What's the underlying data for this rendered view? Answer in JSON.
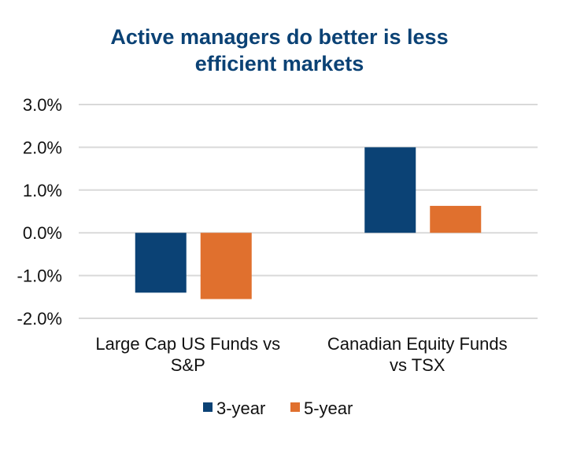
{
  "chart_data": {
    "type": "bar",
    "title": "Active managers do better is less efficient markets",
    "title_lines": [
      "Active managers do better is less",
      "efficient markets"
    ],
    "categories": [
      "Large Cap US Funds vs S&P",
      "Canadian Equity Funds vs TSX"
    ],
    "category_lines": [
      [
        "Large Cap US Funds vs",
        "S&P"
      ],
      [
        "Canadian Equity Funds",
        "vs TSX"
      ]
    ],
    "series": [
      {
        "name": "3-year",
        "color": "#0b4275",
        "values": [
          -1.4,
          2.0
        ]
      },
      {
        "name": "5-year",
        "color": "#e0702e",
        "values": [
          -1.55,
          0.63
        ]
      }
    ],
    "xlabel": "",
    "ylabel": "",
    "ylim": [
      -2.0,
      3.0
    ],
    "yticks": [
      3.0,
      2.0,
      1.0,
      0.0,
      -1.0,
      -2.0
    ],
    "ytick_labels": [
      "3.0%",
      "2.0%",
      "1.0%",
      "0.0%",
      "-1.0%",
      "-2.0%"
    ],
    "grid": true,
    "legend_position": "bottom"
  }
}
